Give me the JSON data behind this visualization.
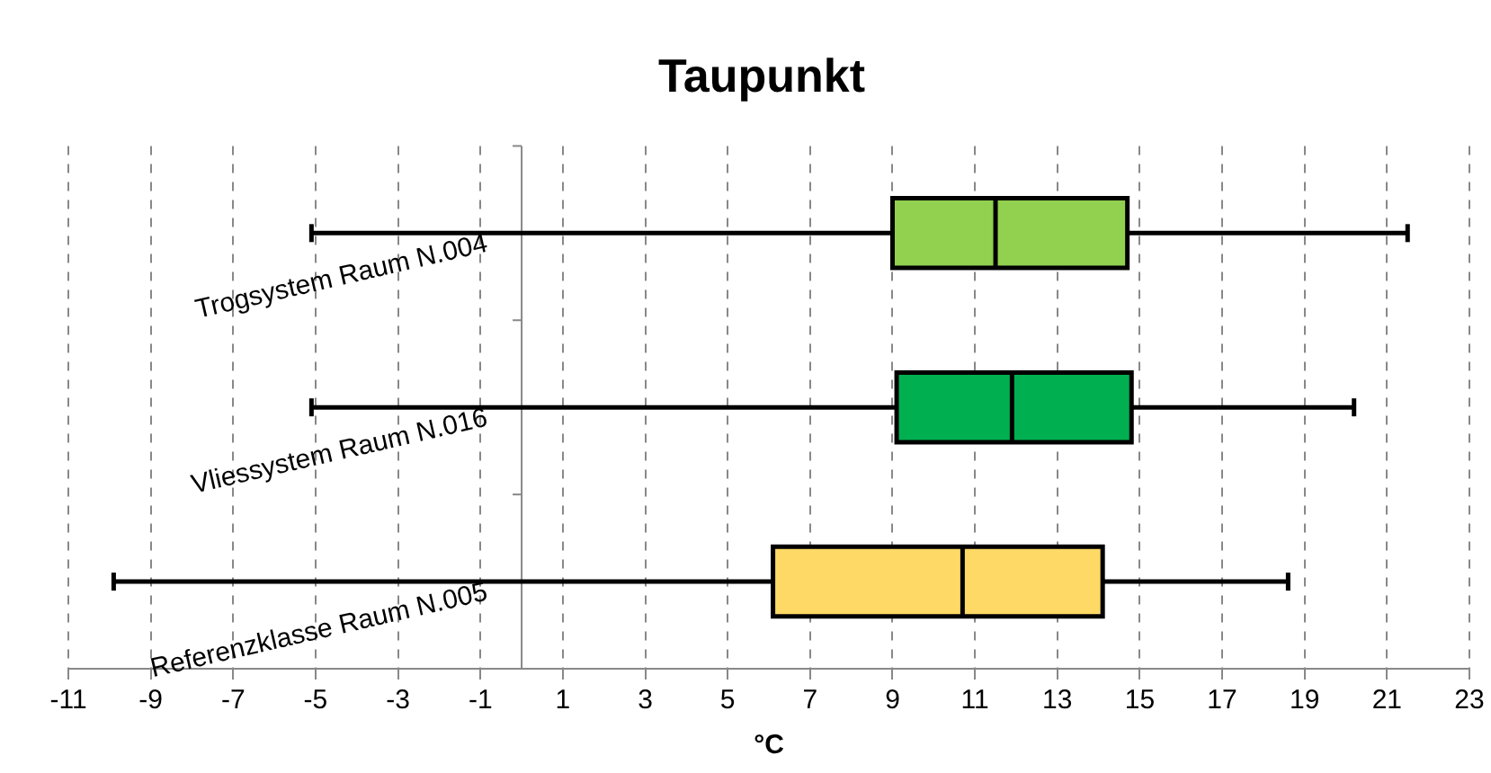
{
  "chart_data": {
    "type": "box",
    "title": "Taupunkt",
    "xlabel": "°C",
    "orientation": "horizontal",
    "categories": [
      "Trogsystem Raum N.004",
      "Vliessystem Raum N.016",
      "Referenzklasse Raum N.005"
    ],
    "colors": [
      "#92d050",
      "#00b050",
      "#ffd966"
    ],
    "boxes": [
      {
        "low": -5.1,
        "q1": 9.0,
        "median": 11.5,
        "q3": 14.7,
        "high": 21.5
      },
      {
        "low": -5.1,
        "q1": 9.1,
        "median": 11.9,
        "q3": 14.8,
        "high": 20.2
      },
      {
        "low": -9.9,
        "q1": 6.1,
        "median": 10.7,
        "q3": 14.1,
        "high": 18.6
      }
    ],
    "xlim": [
      -11,
      23
    ],
    "xticks": [
      -11,
      -9,
      -7,
      -5,
      -3,
      -1,
      1,
      3,
      5,
      7,
      9,
      11,
      13,
      15,
      17,
      19,
      21,
      23
    ],
    "grid": "x"
  }
}
